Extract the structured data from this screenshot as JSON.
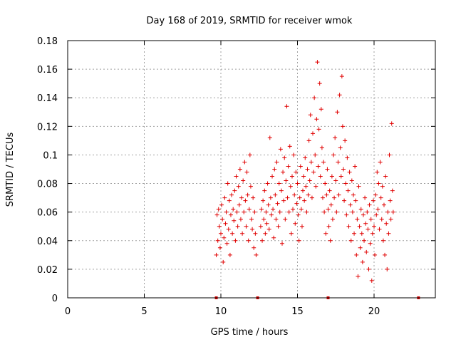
{
  "chart_data": {
    "type": "scatter",
    "title": "Day 168 of 2019, SRMTID for receiver wmok",
    "xlabel": "GPS time / hours",
    "ylabel": "SRMTID / TECUs",
    "xlim": [
      0,
      24
    ],
    "ylim": [
      0,
      0.18
    ],
    "xticks": [
      0,
      5,
      10,
      15,
      20
    ],
    "xtick_labels": [
      "0",
      "5",
      "10",
      "15",
      "20"
    ],
    "yticks": [
      0,
      0.02,
      0.04,
      0.06,
      0.08,
      0.1,
      0.12,
      0.14,
      0.16,
      0.18
    ],
    "ytick_labels": [
      "0",
      "0.02",
      "0.04",
      "0.06",
      "0.08",
      "0.1",
      "0.12",
      "0.14",
      "0.16",
      "0.18"
    ],
    "grid": true,
    "marker": "+",
    "color": "#e00000",
    "baseline_markers_x": [
      9.7,
      12.4,
      17.0,
      22.9
    ],
    "series": [
      {
        "name": "SRMTID",
        "points": [
          [
            9.7,
            0.03
          ],
          [
            9.75,
            0.058
          ],
          [
            9.8,
            0.04
          ],
          [
            9.85,
            0.062
          ],
          [
            9.9,
            0.05
          ],
          [
            9.95,
            0.035
          ],
          [
            10.0,
            0.045
          ],
          [
            10.05,
            0.065
          ],
          [
            10.1,
            0.055
          ],
          [
            10.15,
            0.025
          ],
          [
            10.2,
            0.042
          ],
          [
            10.25,
            0.07
          ],
          [
            10.3,
            0.052
          ],
          [
            10.35,
            0.06
          ],
          [
            10.4,
            0.038
          ],
          [
            10.45,
            0.08
          ],
          [
            10.5,
            0.048
          ],
          [
            10.55,
            0.068
          ],
          [
            10.6,
            0.03
          ],
          [
            10.65,
            0.058
          ],
          [
            10.7,
            0.072
          ],
          [
            10.75,
            0.045
          ],
          [
            10.8,
            0.062
          ],
          [
            10.85,
            0.054
          ],
          [
            10.9,
            0.075
          ],
          [
            10.95,
            0.04
          ],
          [
            11.0,
            0.085
          ],
          [
            11.05,
            0.06
          ],
          [
            11.1,
            0.05
          ],
          [
            11.15,
            0.078
          ],
          [
            11.2,
            0.065
          ],
          [
            11.25,
            0.09
          ],
          [
            11.3,
            0.055
          ],
          [
            11.35,
            0.07
          ],
          [
            11.4,
            0.045
          ],
          [
            11.45,
            0.082
          ],
          [
            11.5,
            0.06
          ],
          [
            11.55,
            0.095
          ],
          [
            11.6,
            0.068
          ],
          [
            11.65,
            0.05
          ],
          [
            11.7,
            0.088
          ],
          [
            11.75,
            0.072
          ],
          [
            11.8,
            0.04
          ],
          [
            11.85,
            0.062
          ],
          [
            11.9,
            0.1
          ],
          [
            11.95,
            0.078
          ],
          [
            12.0,
            0.055
          ],
          [
            12.05,
            0.048
          ],
          [
            12.1,
            0.07
          ],
          [
            12.15,
            0.035
          ],
          [
            12.2,
            0.06
          ],
          [
            12.25,
            0.045
          ],
          [
            12.3,
            0.03
          ],
          [
            12.6,
            0.05
          ],
          [
            12.65,
            0.062
          ],
          [
            12.7,
            0.04
          ],
          [
            12.75,
            0.068
          ],
          [
            12.8,
            0.055
          ],
          [
            12.85,
            0.075
          ],
          [
            12.9,
            0.045
          ],
          [
            12.95,
            0.06
          ],
          [
            13.0,
            0.052
          ],
          [
            13.05,
            0.08
          ],
          [
            13.1,
            0.065
          ],
          [
            13.15,
            0.048
          ],
          [
            13.2,
            0.112
          ],
          [
            13.25,
            0.07
          ],
          [
            13.3,
            0.058
          ],
          [
            13.35,
            0.085
          ],
          [
            13.4,
            0.062
          ],
          [
            13.45,
            0.042
          ],
          [
            13.5,
            0.09
          ],
          [
            13.55,
            0.072
          ],
          [
            13.6,
            0.055
          ],
          [
            13.65,
            0.095
          ],
          [
            13.7,
            0.066
          ],
          [
            13.75,
            0.05
          ],
          [
            13.8,
            0.08
          ],
          [
            13.85,
            0.06
          ],
          [
            13.9,
            0.104
          ],
          [
            13.95,
            0.075
          ],
          [
            14.0,
            0.038
          ],
          [
            14.05,
            0.088
          ],
          [
            14.1,
            0.068
          ],
          [
            14.15,
            0.098
          ],
          [
            14.2,
            0.055
          ],
          [
            14.25,
            0.082
          ],
          [
            14.3,
            0.134
          ],
          [
            14.35,
            0.07
          ],
          [
            14.4,
            0.092
          ],
          [
            14.45,
            0.06
          ],
          [
            14.5,
            0.106
          ],
          [
            14.55,
            0.078
          ],
          [
            14.6,
            0.045
          ],
          [
            14.65,
            0.085
          ],
          [
            14.7,
            0.062
          ],
          [
            14.75,
            0.1
          ],
          [
            14.8,
            0.072
          ],
          [
            14.85,
            0.052
          ],
          [
            14.9,
            0.088
          ],
          [
            14.95,
            0.066
          ],
          [
            15.0,
            0.08
          ],
          [
            15.05,
            0.058
          ],
          [
            15.1,
            0.04
          ],
          [
            15.15,
            0.07
          ],
          [
            15.2,
            0.092
          ],
          [
            15.25,
            0.062
          ],
          [
            15.3,
            0.05
          ],
          [
            15.35,
            0.075
          ],
          [
            15.4,
            0.085
          ],
          [
            15.45,
            0.068
          ],
          [
            15.5,
            0.098
          ],
          [
            15.55,
            0.078
          ],
          [
            15.6,
            0.06
          ],
          [
            15.65,
            0.09
          ],
          [
            15.7,
            0.072
          ],
          [
            15.75,
            0.11
          ],
          [
            15.8,
            0.082
          ],
          [
            15.85,
            0.128
          ],
          [
            15.9,
            0.095
          ],
          [
            15.95,
            0.07
          ],
          [
            16.0,
            0.115
          ],
          [
            16.05,
            0.088
          ],
          [
            16.1,
            0.14
          ],
          [
            16.15,
            0.1
          ],
          [
            16.2,
            0.078
          ],
          [
            16.25,
            0.125
          ],
          [
            16.3,
            0.165
          ],
          [
            16.35,
            0.092
          ],
          [
            16.4,
            0.118
          ],
          [
            16.45,
            0.15
          ],
          [
            16.5,
            0.085
          ],
          [
            16.55,
            0.132
          ],
          [
            16.6,
            0.105
          ],
          [
            16.65,
            0.07
          ],
          [
            16.7,
            0.095
          ],
          [
            16.75,
            0.06
          ],
          [
            16.8,
            0.08
          ],
          [
            16.85,
            0.045
          ],
          [
            16.9,
            0.072
          ],
          [
            16.95,
            0.09
          ],
          [
            17.0,
            0.062
          ],
          [
            17.05,
            0.05
          ],
          [
            17.1,
            0.075
          ],
          [
            17.15,
            0.04
          ],
          [
            17.2,
            0.065
          ],
          [
            17.25,
            0.085
          ],
          [
            17.3,
            0.055
          ],
          [
            17.35,
            0.1
          ],
          [
            17.4,
            0.07
          ],
          [
            17.45,
            0.112
          ],
          [
            17.5,
            0.082
          ],
          [
            17.55,
            0.06
          ],
          [
            17.6,
            0.13
          ],
          [
            17.65,
            0.095
          ],
          [
            17.7,
            0.072
          ],
          [
            17.75,
            0.142
          ],
          [
            17.8,
            0.105
          ],
          [
            17.85,
            0.085
          ],
          [
            17.9,
            0.155
          ],
          [
            17.95,
            0.12
          ],
          [
            18.0,
            0.09
          ],
          [
            18.05,
            0.068
          ],
          [
            18.1,
            0.11
          ],
          [
            18.15,
            0.08
          ],
          [
            18.2,
            0.058
          ],
          [
            18.25,
            0.098
          ],
          [
            18.3,
            0.075
          ],
          [
            18.35,
            0.05
          ],
          [
            18.4,
            0.088
          ],
          [
            18.45,
            0.065
          ],
          [
            18.5,
            0.04
          ],
          [
            18.55,
            0.082
          ],
          [
            18.6,
            0.06
          ],
          [
            18.65,
            0.072
          ],
          [
            18.7,
            0.045
          ],
          [
            18.75,
            0.092
          ],
          [
            18.8,
            0.068
          ],
          [
            18.85,
            0.03
          ],
          [
            18.9,
            0.055
          ],
          [
            18.95,
            0.015
          ],
          [
            19.0,
            0.078
          ],
          [
            19.05,
            0.05
          ],
          [
            19.1,
            0.035
          ],
          [
            19.15,
            0.062
          ],
          [
            19.2,
            0.045
          ],
          [
            19.25,
            0.025
          ],
          [
            19.3,
            0.058
          ],
          [
            19.35,
            0.04
          ],
          [
            19.4,
            0.07
          ],
          [
            19.45,
            0.052
          ],
          [
            19.5,
            0.032
          ],
          [
            19.55,
            0.06
          ],
          [
            19.6,
            0.048
          ],
          [
            19.65,
            0.02
          ],
          [
            19.7,
            0.065
          ],
          [
            19.75,
            0.038
          ],
          [
            19.8,
            0.055
          ],
          [
            19.85,
            0.012
          ],
          [
            19.9,
            0.045
          ],
          [
            19.95,
            0.068
          ],
          [
            20.0,
            0.05
          ],
          [
            20.05,
            0.03
          ],
          [
            20.1,
            0.072
          ],
          [
            20.15,
            0.058
          ],
          [
            20.2,
            0.088
          ],
          [
            20.25,
            0.062
          ],
          [
            20.3,
            0.08
          ],
          [
            20.35,
            0.048
          ],
          [
            20.4,
            0.095
          ],
          [
            20.45,
            0.07
          ],
          [
            20.5,
            0.055
          ],
          [
            20.55,
            0.078
          ],
          [
            20.6,
            0.04
          ],
          [
            20.65,
            0.065
          ],
          [
            20.7,
            0.03
          ],
          [
            20.75,
            0.085
          ],
          [
            20.8,
            0.052
          ],
          [
            20.85,
            0.02
          ],
          [
            20.9,
            0.06
          ],
          [
            20.95,
            0.045
          ],
          [
            21.0,
            0.1
          ],
          [
            21.05,
            0.068
          ],
          [
            21.1,
            0.055
          ],
          [
            21.15,
            0.122
          ],
          [
            21.2,
            0.075
          ],
          [
            21.25,
            0.06
          ]
        ]
      }
    ]
  }
}
